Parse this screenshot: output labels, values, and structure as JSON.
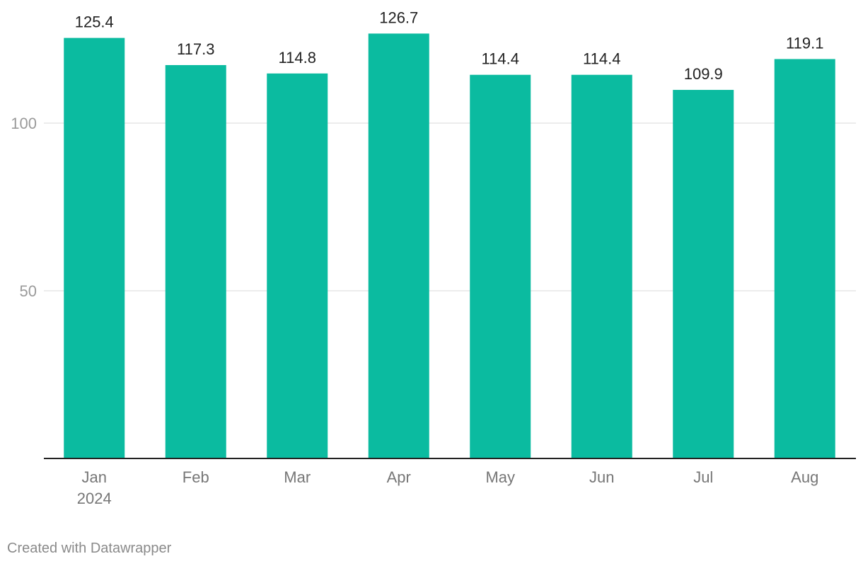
{
  "chart_data": {
    "type": "bar",
    "categories": [
      "Jan",
      "Feb",
      "Mar",
      "Apr",
      "May",
      "Jun",
      "Jul",
      "Aug"
    ],
    "category_sublabels": [
      "2024",
      "",
      "",
      "",
      "",
      "",
      "",
      ""
    ],
    "values": [
      125.4,
      117.3,
      114.8,
      126.7,
      114.4,
      114.4,
      109.9,
      119.1
    ],
    "data_labels": [
      "125.4",
      "117.3",
      "114.8",
      "126.7",
      "114.4",
      "114.4",
      "109.9",
      "119.1"
    ],
    "yticks": [
      50,
      100
    ],
    "ylim": [
      0,
      135
    ],
    "bar_color": "#0bbba0",
    "grid": true,
    "legend": "none"
  },
  "footer": {
    "credit": "Created with Datawrapper"
  }
}
